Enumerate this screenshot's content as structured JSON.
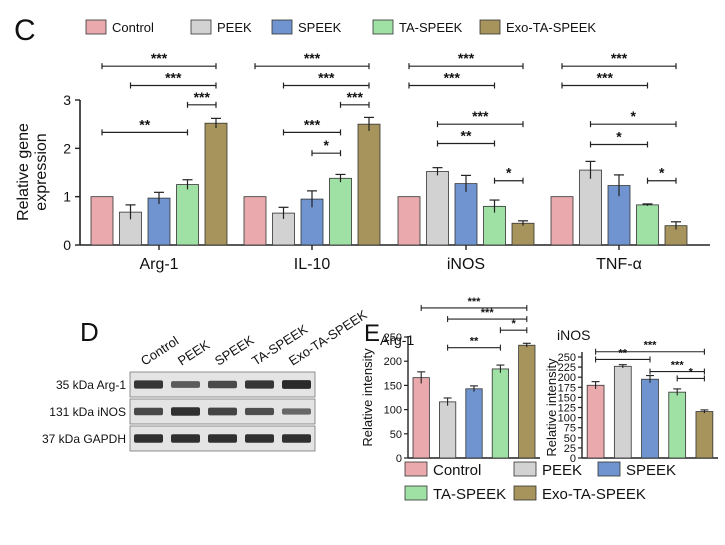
{
  "colors": {
    "Control": "#e9a9ad",
    "PEEK": "#d2d2d2",
    "SPEEK": "#6f94cf",
    "TA-SPEEK": "#9fe0a4",
    "Exo-TA-SPEEK": "#a6945c"
  },
  "panels": {
    "c": "C",
    "d": "D",
    "e": "E"
  },
  "chart_data": [
    {
      "id": "C",
      "type": "bar",
      "title": "",
      "ylabel": "Relative gene expression",
      "ylabel_lines": [
        "Relative gene",
        "expression"
      ],
      "ylim": [
        0,
        3
      ],
      "yticks": [
        0,
        1,
        2,
        3
      ],
      "legend": [
        "Control",
        "PEEK",
        "SPEEK",
        "TA-SPEEK",
        "Exo-TA-SPEEK"
      ],
      "legend_position": "top",
      "categories": [
        "Arg-1",
        "IL-10",
        "iNOS",
        "TNF-α"
      ],
      "series": [
        {
          "name": "Control",
          "values": [
            1.0,
            1.0,
            1.0,
            1.0
          ],
          "errors": [
            0,
            0,
            0,
            0
          ]
        },
        {
          "name": "PEEK",
          "values": [
            0.68,
            0.66,
            1.52,
            1.55
          ],
          "errors": [
            0.15,
            0.12,
            0.08,
            0.18
          ]
        },
        {
          "name": "SPEEK",
          "values": [
            0.97,
            0.95,
            1.27,
            1.23
          ],
          "errors": [
            0.12,
            0.17,
            0.17,
            0.22
          ]
        },
        {
          "name": "TA-SPEEK",
          "values": [
            1.25,
            1.38,
            0.8,
            0.83
          ],
          "errors": [
            0.1,
            0.08,
            0.13,
            0.02
          ]
        },
        {
          "name": "Exo-TA-SPEEK",
          "values": [
            2.52,
            2.5,
            0.45,
            0.4
          ],
          "errors": [
            0.1,
            0.14,
            0.05,
            0.08
          ]
        }
      ],
      "significance": [
        {
          "group": 0,
          "a": 0,
          "b": 4,
          "y": 3.7,
          "label": "***"
        },
        {
          "group": 0,
          "a": 1,
          "b": 4,
          "y": 3.3,
          "label": "***"
        },
        {
          "group": 0,
          "a": 3,
          "b": 4,
          "y": 2.9,
          "label": "***"
        },
        {
          "group": 0,
          "a": 0,
          "b": 3,
          "y": 2.33,
          "label": "**"
        },
        {
          "group": 1,
          "a": 0,
          "b": 4,
          "y": 3.7,
          "label": "***"
        },
        {
          "group": 1,
          "a": 1,
          "b": 4,
          "y": 3.3,
          "label": "***"
        },
        {
          "group": 1,
          "a": 3,
          "b": 4,
          "y": 2.9,
          "label": "***"
        },
        {
          "group": 1,
          "a": 1,
          "b": 3,
          "y": 2.33,
          "label": "***"
        },
        {
          "group": 1,
          "a": 2,
          "b": 3,
          "y": 1.9,
          "label": "*"
        },
        {
          "group": 2,
          "a": 0,
          "b": 4,
          "y": 3.7,
          "label": "***"
        },
        {
          "group": 2,
          "a": 0,
          "b": 3,
          "y": 3.3,
          "label": "***"
        },
        {
          "group": 2,
          "a": 1,
          "b": 4,
          "y": 2.5,
          "label": "***"
        },
        {
          "group": 2,
          "a": 1,
          "b": 3,
          "y": 2.1,
          "label": "**"
        },
        {
          "group": 2,
          "a": 3,
          "b": 4,
          "y": 1.33,
          "label": "*"
        },
        {
          "group": 3,
          "a": 0,
          "b": 4,
          "y": 3.7,
          "label": "***"
        },
        {
          "group": 3,
          "a": 0,
          "b": 3,
          "y": 3.3,
          "label": "***"
        },
        {
          "group": 3,
          "a": 1,
          "b": 4,
          "y": 2.5,
          "label": "*"
        },
        {
          "group": 3,
          "a": 1,
          "b": 3,
          "y": 2.08,
          "label": "*"
        },
        {
          "group": 3,
          "a": 3,
          "b": 4,
          "y": 1.33,
          "label": "*"
        }
      ]
    },
    {
      "id": "E-Arg-1",
      "type": "bar",
      "title": "Arg-1",
      "ylabel": "Relative intensity",
      "ylim": [
        0,
        250
      ],
      "yticks": [
        0,
        50,
        100,
        150,
        200,
        250
      ],
      "categories": [
        "Control",
        "PEEK",
        "SPEEK",
        "TA-SPEEK",
        "Exo-TA-SPEEK"
      ],
      "values": [
        166,
        116,
        143,
        184,
        233
      ],
      "errors": [
        12,
        8,
        6,
        8,
        4
      ],
      "significance": [
        {
          "a": 0,
          "b": 4,
          "y": 310,
          "label": "***"
        },
        {
          "a": 1,
          "b": 4,
          "y": 287,
          "label": "***"
        },
        {
          "a": 3,
          "b": 4,
          "y": 264,
          "label": "*"
        },
        {
          "a": 1,
          "b": 3,
          "y": 228,
          "label": "**"
        }
      ]
    },
    {
      "id": "E-iNOS",
      "type": "bar",
      "title": "iNOS",
      "ylabel": "Relative intensity",
      "ylim": [
        0,
        250
      ],
      "yticks": [
        0,
        25,
        50,
        75,
        100,
        125,
        150,
        175,
        200,
        225,
        250
      ],
      "categories": [
        "Control",
        "PEEK",
        "SPEEK",
        "TA-SPEEK",
        "Exo-TA-SPEEK"
      ],
      "values": [
        180,
        227,
        195,
        163,
        115
      ],
      "errors": [
        9,
        4,
        9,
        8,
        4
      ],
      "significance": [
        {
          "a": 0,
          "b": 4,
          "y": 263,
          "label": "***"
        },
        {
          "a": 0,
          "b": 2,
          "y": 244,
          "label": "**"
        },
        {
          "a": 2,
          "b": 4,
          "y": 214,
          "label": "***"
        },
        {
          "a": 3,
          "b": 4,
          "y": 197,
          "label": "*"
        }
      ]
    }
  ],
  "blot": {
    "lanes": [
      "Control",
      "PEEK",
      "SPEEK",
      "TA-SPEEK",
      "Exo-TA-SPEEK"
    ],
    "rows": [
      {
        "label": "35 kDa Arg-1",
        "intensity": [
          0.85,
          0.55,
          0.7,
          0.85,
          0.95
        ]
      },
      {
        "label": "131 kDa iNOS",
        "intensity": [
          0.7,
          0.9,
          0.75,
          0.65,
          0.45
        ]
      },
      {
        "label": "37 kDa GAPDH",
        "intensity": [
          0.9,
          0.9,
          0.9,
          0.9,
          0.9
        ]
      }
    ]
  }
}
